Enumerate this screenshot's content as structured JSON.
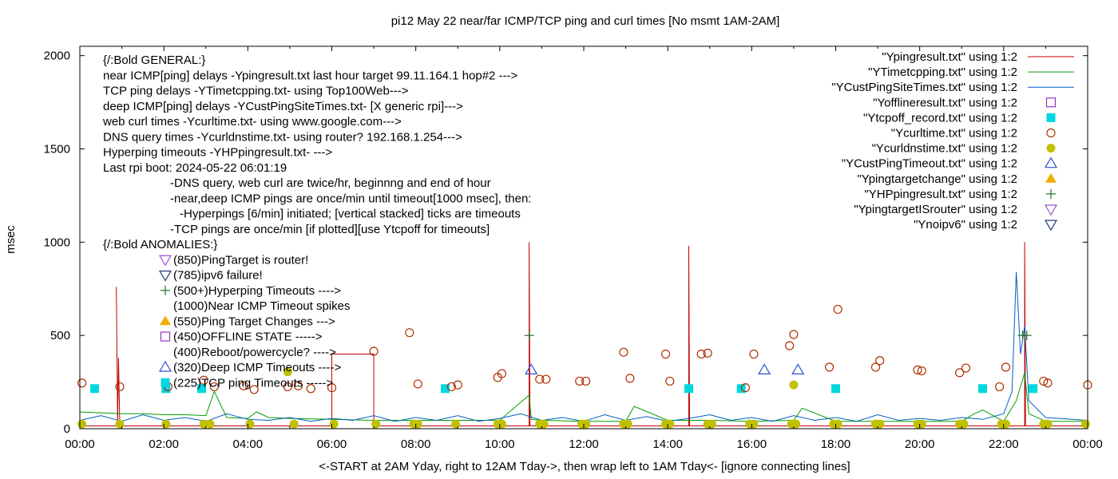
{
  "chart_data": {
    "type": "line",
    "title": "pi12 May 22  near/far ICMP/TCP ping and curl times [No msmt 1AM-2AM]",
    "xlabel": "<-START at 2AM Yday, right to 12AM Tday->, then wrap left to 1AM Tday<- [ignore connecting lines]",
    "ylabel": "msec",
    "ylim": [
      0,
      2050
    ],
    "yticks": [
      0,
      500,
      1000,
      1500,
      2000
    ],
    "xlim": [
      0,
      24
    ],
    "xtick_labels": [
      "00:00",
      "02:00",
      "04:00",
      "06:00",
      "08:00",
      "10:00",
      "12:00",
      "14:00",
      "16:00",
      "18:00",
      "20:00",
      "22:00",
      "00:00"
    ],
    "grid": false,
    "legend_position": "top-right",
    "annotations": [
      "{/:Bold GENERAL:}",
      "near ICMP[ping] delays -Ypingresult.txt last hour target 99.11.164.1 hop#2 --->",
      "TCP ping delays -YTimetcpping.txt- using Top100Web--->",
      "deep ICMP[ping] delays -YCustPingSiteTimes.txt- [X generic rpi]--->",
      "web curl times -Ycurltime.txt- using www.google.com--->",
      "DNS query times -Ycurldnstime.txt- using router? 192.168.1.254--->",
      "Hyperping timeouts -YHPpingresult.txt- --->",
      "Last rpi boot: 2024-05-22 06:01:19",
      "-DNS query, web curl are twice/hr, beginnng and end of hour",
      "-near,deep ICMP pings are once/min until timeout[1000 msec], then:",
      "-Hyperpings [6/min] initiated; [vertical stacked] ticks are timeouts",
      "-TCP pings are once/min [if plotted][use Ytcpoff for timeouts]",
      "{/:Bold ANOMALIES:}",
      "(850)PingTarget is router!",
      "(785)ipv6 failure!",
      "(500+)Hyperping Timeouts ---->",
      "(1000)Near ICMP Timeout spikes",
      "(550)Ping Target Changes --->",
      "(450)OFFLINE STATE ----->",
      "(400)Reboot/powercycle? ---->",
      "(320)Deep ICMP Timeouts ---->",
      "(225)TCP ping Timeouts ----->"
    ],
    "series": [
      {
        "name": "\"Ypingresult.txt\" using 1:2",
        "style": "line",
        "color": "#c00000",
        "x": [
          0,
          0.9,
          0.87,
          0.9,
          0.92,
          0.95,
          1.0,
          1.02,
          1.05,
          3.1,
          6.0,
          6.0,
          7.0,
          7.0,
          10.7,
          10.7,
          10.72,
          10.75,
          14.5,
          14.5,
          14.52,
          14.55,
          22.5,
          22.5,
          22.52,
          22.55,
          24
        ],
        "y": [
          15,
          15,
          760,
          15,
          380,
          15,
          15,
          15,
          15,
          15,
          15,
          400,
          400,
          15,
          15,
          1000,
          15,
          15,
          15,
          980,
          15,
          15,
          15,
          1000,
          15,
          15,
          15
        ]
      },
      {
        "name": "\"YTimetcpping.txt\" using 1:2",
        "style": "line",
        "color": "#00a000",
        "x": [
          0,
          0.5,
          1,
          1.5,
          2,
          2.5,
          3,
          3.2,
          3.5,
          4,
          4.2,
          4.5,
          5,
          6,
          7,
          8,
          9,
          10,
          10.7,
          10.75,
          11,
          12,
          13,
          13.2,
          14,
          15,
          16,
          17,
          17.2,
          18,
          19,
          20,
          21,
          21.3,
          21.5,
          22,
          22.3,
          22.5,
          22.6,
          23,
          24
        ],
        "y": [
          90,
          85,
          80,
          80,
          75,
          75,
          70,
          200,
          60,
          55,
          90,
          60,
          55,
          50,
          45,
          45,
          45,
          45,
          180,
          50,
          45,
          40,
          40,
          120,
          45,
          45,
          40,
          45,
          110,
          40,
          40,
          40,
          40,
          80,
          100,
          40,
          150,
          300,
          80,
          40,
          40
        ]
      },
      {
        "name": "\"YCustPingSiteTimes.txt\" using 1:2",
        "style": "line",
        "color": "#0060c0",
        "x": [
          0,
          0.5,
          1,
          1.5,
          2,
          2.5,
          3,
          3.5,
          4,
          4.5,
          5,
          5.5,
          6,
          6.5,
          7,
          7.5,
          8,
          8.5,
          9,
          9.5,
          10,
          10.5,
          11,
          11.5,
          12,
          12.5,
          13,
          13.5,
          14,
          14.5,
          15,
          15.5,
          16,
          16.5,
          17,
          17.5,
          18,
          18.5,
          19,
          19.5,
          20,
          20.5,
          21,
          21.5,
          22,
          22.2,
          22.3,
          22.4,
          22.5,
          22.6,
          23,
          24
        ],
        "y": [
          45,
          70,
          40,
          75,
          45,
          60,
          40,
          80,
          50,
          45,
          60,
          40,
          55,
          45,
          70,
          40,
          60,
          45,
          70,
          40,
          55,
          80,
          45,
          60,
          40,
          75,
          45,
          65,
          40,
          55,
          75,
          45,
          60,
          40,
          70,
          45,
          60,
          40,
          75,
          45,
          55,
          45,
          60,
          50,
          80,
          200,
          840,
          400,
          550,
          150,
          60,
          45
        ]
      },
      {
        "name": "\"Yofflineresult.txt\" using 1:2",
        "style": "open-square",
        "color": "#9a30c0",
        "x": [],
        "y": []
      },
      {
        "name": "\"Ytcpoff_record.txt\" using 1:2",
        "style": "filled-square",
        "color": "#00d8e0",
        "x": [
          0.35,
          2.05,
          2.9,
          8.7,
          14.5,
          15.75,
          18.0,
          21.5,
          22.7
        ],
        "y": [
          215,
          215,
          215,
          215,
          215,
          215,
          215,
          215,
          215
        ]
      },
      {
        "name": "\"Ycurltime.txt\" using 1:2",
        "style": "open-circle",
        "color": "#b03000",
        "x": [
          0.05,
          0.95,
          2.1,
          2.95,
          3.2,
          3.9,
          4.15,
          4.95,
          5.2,
          5.5,
          6.0,
          7.0,
          7.85,
          8.05,
          8.85,
          9.0,
          9.95,
          10.05,
          10.95,
          11.1,
          11.9,
          12.05,
          12.95,
          13.1,
          13.95,
          14.05,
          14.8,
          14.95,
          15.85,
          16.05,
          16.9,
          17.0,
          17.85,
          18.05,
          18.95,
          19.05,
          19.95,
          20.05,
          20.95,
          21.1,
          21.9,
          22.05,
          22.95,
          23.05,
          24.0
        ],
        "y": [
          245,
          225,
          225,
          260,
          225,
          230,
          210,
          225,
          230,
          215,
          220,
          415,
          515,
          240,
          225,
          235,
          275,
          295,
          265,
          265,
          255,
          255,
          410,
          270,
          400,
          255,
          400,
          405,
          220,
          400,
          445,
          505,
          330,
          640,
          330,
          365,
          315,
          310,
          300,
          325,
          225,
          330,
          255,
          245,
          235
        ]
      },
      {
        "name": "\"Ycurldnstime.txt\" using 1:2",
        "style": "filled-circle",
        "color": "#c0c000",
        "x": [
          0.05,
          0.95,
          2.05,
          2.95,
          3.1,
          4.05,
          4.95,
          5.1,
          6.05,
          7.05,
          7.95,
          8.05,
          8.95,
          9.95,
          10.05,
          10.95,
          11.05,
          11.95,
          12.05,
          12.95,
          13.05,
          13.95,
          14.05,
          14.95,
          15.05,
          15.95,
          16.05,
          16.95,
          17.0,
          17.05,
          17.95,
          18.05,
          18.95,
          19.05,
          19.95,
          20.05,
          20.95,
          21.05,
          21.95,
          22.05,
          22.95,
          23.05,
          23.95
        ],
        "y": [
          25,
          25,
          25,
          25,
          25,
          25,
          305,
          25,
          25,
          25,
          25,
          25,
          25,
          25,
          25,
          25,
          25,
          25,
          25,
          25,
          25,
          25,
          25,
          25,
          25,
          25,
          25,
          25,
          235,
          25,
          25,
          25,
          25,
          25,
          25,
          25,
          25,
          25,
          25,
          25,
          25,
          25,
          25
        ]
      },
      {
        "name": "\"YCustPingTimeout.txt\" using 1:2",
        "style": "open-triangle-up",
        "color": "#3050d0",
        "x": [
          10.75,
          16.3,
          17.1
        ],
        "y": [
          315,
          315,
          315
        ]
      },
      {
        "name": "\"Ypingtargetchange\" using 1:2",
        "style": "filled-triangle-up",
        "color": "#f0b000",
        "x": [],
        "y": []
      },
      {
        "name": "\"YHPpingresult.txt\" using 1:2",
        "style": "plus",
        "color": "#207020",
        "x": [
          10.7,
          22.45,
          22.55
        ],
        "y": [
          500,
          500,
          500
        ]
      },
      {
        "name": "\"YpingtargetISrouter\" using 1:2",
        "style": "open-triangle-down",
        "color": "#a050d0",
        "x": [],
        "y": []
      },
      {
        "name": "\"Ynoipv6\" using 1:2",
        "style": "open-triangle-down",
        "color": "#203880",
        "x": [],
        "y": []
      }
    ]
  }
}
